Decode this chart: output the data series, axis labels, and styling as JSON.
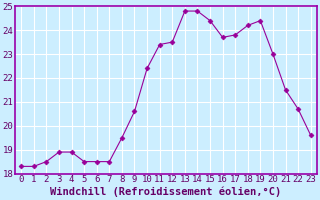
{
  "x": [
    0,
    1,
    2,
    3,
    4,
    5,
    6,
    7,
    8,
    9,
    10,
    11,
    12,
    13,
    14,
    15,
    16,
    17,
    18,
    19,
    20,
    21,
    22,
    23
  ],
  "y": [
    18.3,
    18.3,
    18.5,
    18.9,
    18.9,
    18.5,
    18.5,
    18.5,
    19.5,
    20.6,
    22.4,
    23.4,
    23.5,
    24.8,
    24.8,
    24.4,
    23.7,
    23.8,
    24.2,
    24.4,
    23.0,
    21.5,
    20.7,
    19.6
  ],
  "line_color": "#990099",
  "marker": "D",
  "marker_size": 2.5,
  "background_color": "#cceeff",
  "grid_color": "#ffffff",
  "xlabel": "Windchill (Refroidissement éolien,°C)",
  "ylim": [
    18,
    25
  ],
  "xlim_min": -0.5,
  "xlim_max": 23.5,
  "yticks": [
    18,
    19,
    20,
    21,
    22,
    23,
    24,
    25
  ],
  "xticks": [
    0,
    1,
    2,
    3,
    4,
    5,
    6,
    7,
    8,
    9,
    10,
    11,
    12,
    13,
    14,
    15,
    16,
    17,
    18,
    19,
    20,
    21,
    22,
    23
  ],
  "tick_fontsize": 6.5,
  "xlabel_fontsize": 7.5,
  "spine_color": "#9900aa",
  "fig_width": 3.2,
  "fig_height": 2.0,
  "dpi": 100
}
